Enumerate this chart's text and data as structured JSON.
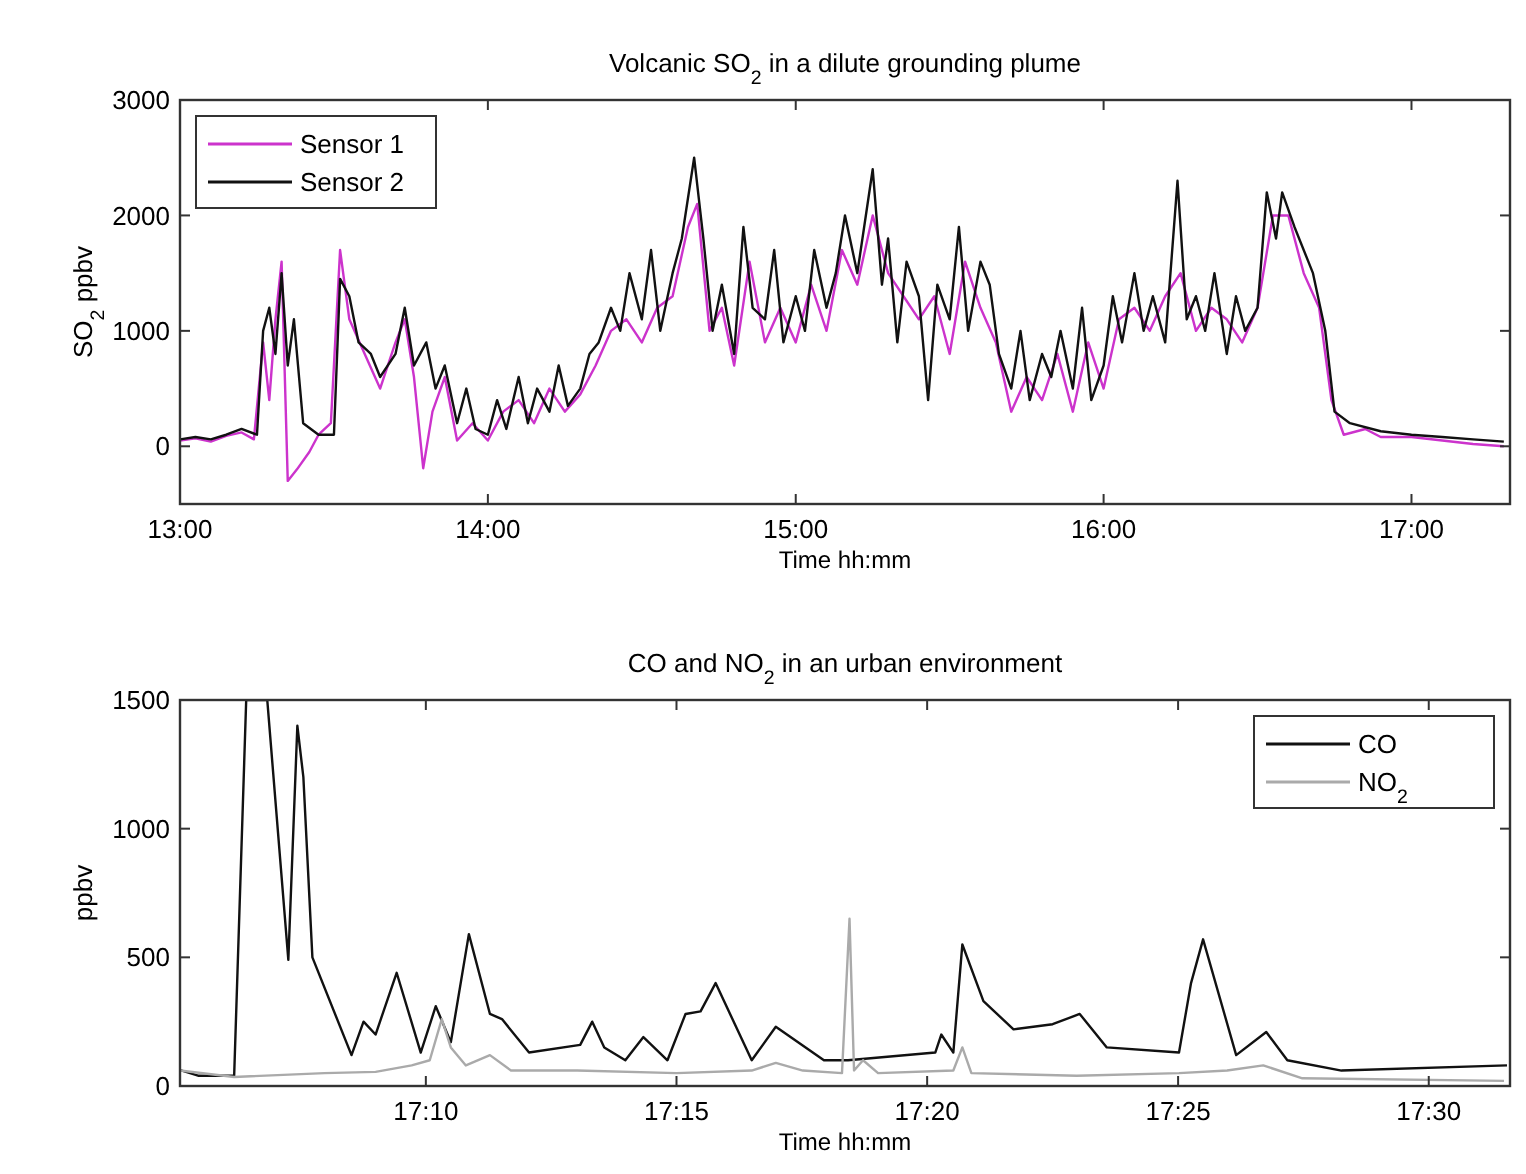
{
  "chart_data": [
    {
      "type": "line",
      "title": "Volcanic SO$_{2}$ in a dilute grounding plume",
      "xlabel": "Time hh:mm",
      "ylabel": "SO$_{2}$ ppbv",
      "xlim": [
        13,
        17.32
      ],
      "ylim": [
        -500,
        3000
      ],
      "xticks": [
        {
          "value": 13,
          "label": "13:00"
        },
        {
          "value": 14,
          "label": "14:00"
        },
        {
          "value": 15,
          "label": "15:00"
        },
        {
          "value": 16,
          "label": "16:00"
        },
        {
          "value": 17,
          "label": "17:00"
        }
      ],
      "yticks": [
        0,
        1000,
        2000,
        3000
      ],
      "grid": false,
      "legend": "top left",
      "series": [
        {
          "name": "Sensor 1",
          "color": "#cc33cc",
          "x": [
            13,
            13.05,
            13.1,
            13.15,
            13.2,
            13.24,
            13.27,
            13.29,
            13.31,
            13.33,
            13.35,
            13.38,
            13.42,
            13.45,
            13.49,
            13.52,
            13.55,
            13.6,
            13.65,
            13.7,
            13.73,
            13.76,
            13.79,
            13.82,
            13.86,
            13.9,
            13.95,
            14,
            14.05,
            14.1,
            14.15,
            14.2,
            14.25,
            14.3,
            14.35,
            14.4,
            14.45,
            14.5,
            14.55,
            14.6,
            14.65,
            14.68,
            14.72,
            14.76,
            14.8,
            14.85,
            14.9,
            14.95,
            15,
            15.05,
            15.1,
            15.15,
            15.2,
            15.25,
            15.3,
            15.35,
            15.4,
            15.45,
            15.5,
            15.55,
            15.6,
            15.65,
            15.7,
            15.75,
            15.8,
            15.85,
            15.9,
            15.95,
            16,
            16.05,
            16.1,
            16.15,
            16.2,
            16.25,
            16.3,
            16.35,
            16.4,
            16.45,
            16.5,
            16.55,
            16.6,
            16.65,
            16.7,
            16.74,
            16.78,
            16.85,
            16.9,
            17,
            17.1,
            17.2,
            17.3
          ],
          "values": [
            50,
            70,
            40,
            90,
            120,
            60,
            900,
            400,
            1100,
            1600,
            -300,
            -200,
            -50,
            100,
            200,
            1700,
            1100,
            800,
            500,
            900,
            1100,
            600,
            -190,
            300,
            600,
            50,
            200,
            50,
            300,
            400,
            200,
            500,
            300,
            450,
            700,
            1000,
            1100,
            900,
            1200,
            1300,
            1900,
            2100,
            1000,
            1200,
            700,
            1600,
            900,
            1200,
            900,
            1400,
            1000,
            1700,
            1400,
            2000,
            1500,
            1300,
            1100,
            1300,
            800,
            1600,
            1200,
            900,
            300,
            600,
            400,
            800,
            300,
            900,
            500,
            1100,
            1200,
            1000,
            1300,
            1500,
            1000,
            1200,
            1100,
            900,
            1200,
            2000,
            2000,
            1500,
            1200,
            400,
            100,
            150,
            80,
            80,
            50,
            20,
            0
          ]
        },
        {
          "name": "Sensor 2",
          "color": "#111111",
          "x": [
            13,
            13.05,
            13.1,
            13.15,
            13.2,
            13.25,
            13.27,
            13.29,
            13.31,
            13.33,
            13.35,
            13.37,
            13.4,
            13.45,
            13.5,
            13.52,
            13.55,
            13.58,
            13.62,
            13.65,
            13.7,
            13.73,
            13.76,
            13.8,
            13.83,
            13.86,
            13.9,
            13.93,
            13.96,
            14,
            14.03,
            14.06,
            14.1,
            14.13,
            14.16,
            14.2,
            14.23,
            14.26,
            14.3,
            14.33,
            14.36,
            14.4,
            14.43,
            14.46,
            14.5,
            14.53,
            14.56,
            14.6,
            14.63,
            14.67,
            14.7,
            14.73,
            14.76,
            14.8,
            14.83,
            14.86,
            14.9,
            14.93,
            14.96,
            15,
            15.03,
            15.06,
            15.1,
            15.13,
            15.16,
            15.2,
            15.25,
            15.28,
            15.3,
            15.33,
            15.36,
            15.4,
            15.43,
            15.46,
            15.5,
            15.53,
            15.56,
            15.6,
            15.63,
            15.66,
            15.7,
            15.73,
            15.76,
            15.8,
            15.83,
            15.86,
            15.9,
            15.93,
            15.96,
            16,
            16.03,
            16.06,
            16.1,
            16.13,
            16.16,
            16.2,
            16.24,
            16.27,
            16.3,
            16.33,
            16.36,
            16.4,
            16.43,
            16.46,
            16.5,
            16.53,
            16.56,
            16.58,
            16.62,
            16.68,
            16.72,
            16.75,
            16.8,
            16.9,
            17,
            17.1,
            17.2,
            17.3
          ],
          "values": [
            60,
            80,
            60,
            100,
            150,
            100,
            1000,
            1200,
            800,
            1500,
            700,
            1100,
            200,
            100,
            100,
            1450,
            1300,
            900,
            800,
            600,
            800,
            1200,
            700,
            900,
            500,
            700,
            200,
            500,
            150,
            100,
            400,
            150,
            600,
            200,
            500,
            300,
            700,
            350,
            500,
            800,
            900,
            1200,
            1000,
            1500,
            1100,
            1700,
            1000,
            1500,
            1800,
            2500,
            1800,
            1000,
            1400,
            800,
            1900,
            1200,
            1100,
            1700,
            900,
            1300,
            1000,
            1700,
            1200,
            1500,
            2000,
            1500,
            2400,
            1400,
            1800,
            900,
            1600,
            1300,
            400,
            1400,
            1100,
            1900,
            1000,
            1600,
            1400,
            800,
            500,
            1000,
            400,
            800,
            600,
            1000,
            500,
            1200,
            400,
            700,
            1300,
            900,
            1500,
            1000,
            1300,
            900,
            2300,
            1100,
            1300,
            1000,
            1500,
            800,
            1300,
            1000,
            1200,
            2200,
            1800,
            2200,
            1900,
            1500,
            1000,
            300,
            200,
            130,
            100,
            80,
            60,
            40
          ]
        }
      ]
    },
    {
      "type": "line",
      "title": "CO and NO$_{2}$ in an urban environment",
      "xlabel": "Time hh:mm",
      "ylabel": "ppbv",
      "xlim": [
        17.085,
        17.527
      ],
      "ylim": [
        0,
        1500
      ],
      "xticks": [
        {
          "value": 17.1667,
          "label": "17:10"
        },
        {
          "value": 17.25,
          "label": "17:15"
        },
        {
          "value": 17.3333,
          "label": "17:20"
        },
        {
          "value": 17.4167,
          "label": "17:25"
        },
        {
          "value": 17.5,
          "label": "17:30"
        }
      ],
      "yticks": [
        0,
        500,
        1000,
        1500
      ],
      "grid": false,
      "legend": "top right",
      "series": [
        {
          "name": "CO",
          "color": "#111111",
          "x": [
            17.085,
            17.091,
            17.103,
            17.107,
            17.114,
            17.121,
            17.124,
            17.126,
            17.129,
            17.142,
            17.146,
            17.15,
            17.157,
            17.165,
            17.17,
            17.175,
            17.181,
            17.188,
            17.192,
            17.201,
            17.218,
            17.222,
            17.226,
            17.233,
            17.239,
            17.247,
            17.253,
            17.258,
            17.263,
            17.275,
            17.283,
            17.299,
            17.307,
            17.336,
            17.338,
            17.342,
            17.345,
            17.352,
            17.362,
            17.375,
            17.384,
            17.393,
            17.417,
            17.421,
            17.425,
            17.436,
            17.446,
            17.453,
            17.471,
            17.526
          ],
          "values": [
            62,
            40,
            40,
            1500,
            1500,
            490,
            1400,
            1200,
            500,
            120,
            250,
            200,
            440,
            130,
            310,
            170,
            590,
            280,
            260,
            130,
            160,
            250,
            150,
            100,
            190,
            100,
            280,
            290,
            400,
            100,
            230,
            100,
            100,
            130,
            200,
            130,
            550,
            330,
            220,
            240,
            280,
            150,
            130,
            400,
            570,
            120,
            210,
            100,
            60,
            80
          ]
        },
        {
          "name": "NO$_{2}$",
          "color": "#aaaaaa",
          "x": [
            17.085,
            17.103,
            17.133,
            17.15,
            17.162,
            17.168,
            17.172,
            17.175,
            17.18,
            17.188,
            17.195,
            17.217,
            17.25,
            17.275,
            17.283,
            17.292,
            17.305,
            17.3075,
            17.309,
            17.312,
            17.317,
            17.342,
            17.345,
            17.348,
            17.383,
            17.417,
            17.433,
            17.445,
            17.458,
            17.525
          ],
          "values": [
            60,
            35,
            50,
            55,
            80,
            100,
            260,
            150,
            80,
            120,
            60,
            60,
            50,
            60,
            90,
            60,
            50,
            650,
            60,
            100,
            50,
            60,
            150,
            50,
            40,
            50,
            60,
            80,
            30,
            20
          ]
        }
      ]
    }
  ]
}
